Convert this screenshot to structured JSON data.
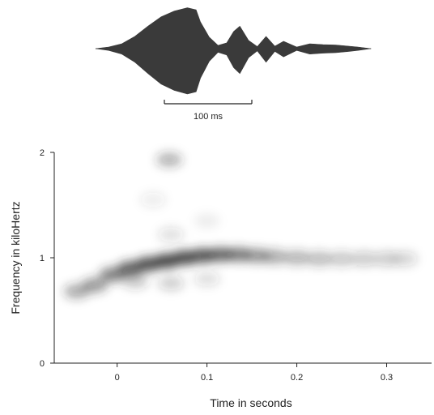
{
  "chart_data": [
    {
      "type": "line",
      "subtype": "waveform",
      "scale_bar": {
        "label": "100 ms",
        "duration_s": 0.1
      },
      "envelope": {
        "t": [
          0.0,
          0.015,
          0.03,
          0.045,
          0.06,
          0.075,
          0.09,
          0.105,
          0.115,
          0.12,
          0.13,
          0.14,
          0.15,
          0.158,
          0.165,
          0.175,
          0.185,
          0.195,
          0.205,
          0.215,
          0.23,
          0.245,
          0.26,
          0.275,
          0.29,
          0.3,
          0.315
        ],
        "amp": [
          0.0,
          0.04,
          0.12,
          0.3,
          0.55,
          0.78,
          0.92,
          1.0,
          0.95,
          0.65,
          0.28,
          0.08,
          0.14,
          0.42,
          0.55,
          0.2,
          0.05,
          0.3,
          0.06,
          0.18,
          0.04,
          0.12,
          0.1,
          0.09,
          0.06,
          0.04,
          0.0
        ]
      },
      "color": "#3a3a3a"
    },
    {
      "type": "heatmap",
      "subtype": "spectrogram",
      "xlabel": "Time in seconds",
      "ylabel": "Frequency in kiloHertz",
      "xlim": [
        -0.07,
        0.35
      ],
      "ylim": [
        0,
        2
      ],
      "xticks": [
        0,
        0.1,
        0.2,
        0.3
      ],
      "xtick_labels": [
        "0",
        "0.1",
        "0.2",
        "0.3"
      ],
      "yticks": [
        0,
        1,
        2
      ],
      "ytick_labels": [
        "0",
        "1",
        "2"
      ],
      "color": "#2a2a2a",
      "blobs": [
        {
          "t": -0.045,
          "f": 0.68,
          "intensity": 0.45
        },
        {
          "t": -0.025,
          "f": 0.74,
          "intensity": 0.55
        },
        {
          "t": -0.005,
          "f": 0.84,
          "intensity": 0.7
        },
        {
          "t": 0.015,
          "f": 0.9,
          "intensity": 0.85
        },
        {
          "t": 0.035,
          "f": 0.94,
          "intensity": 0.95
        },
        {
          "t": 0.055,
          "f": 0.97,
          "intensity": 1.0
        },
        {
          "t": 0.075,
          "f": 1.0,
          "intensity": 0.98
        },
        {
          "t": 0.095,
          "f": 1.02,
          "intensity": 0.9
        },
        {
          "t": 0.115,
          "f": 1.03,
          "intensity": 0.8
        },
        {
          "t": 0.135,
          "f": 1.03,
          "intensity": 0.7
        },
        {
          "t": 0.155,
          "f": 1.02,
          "intensity": 0.55
        },
        {
          "t": 0.175,
          "f": 1.01,
          "intensity": 0.45
        },
        {
          "t": 0.2,
          "f": 1.0,
          "intensity": 0.4
        },
        {
          "t": 0.225,
          "f": 0.99,
          "intensity": 0.36
        },
        {
          "t": 0.25,
          "f": 0.99,
          "intensity": 0.3
        },
        {
          "t": 0.275,
          "f": 0.99,
          "intensity": 0.27
        },
        {
          "t": 0.3,
          "f": 0.99,
          "intensity": 0.26
        },
        {
          "t": 0.32,
          "f": 0.99,
          "intensity": 0.22
        },
        {
          "t": 0.02,
          "f": 0.78,
          "intensity": 0.3
        },
        {
          "t": 0.06,
          "f": 0.76,
          "intensity": 0.25
        },
        {
          "t": 0.1,
          "f": 0.8,
          "intensity": 0.18
        },
        {
          "t": 0.06,
          "f": 1.22,
          "intensity": 0.16
        },
        {
          "t": 0.04,
          "f": 1.55,
          "intensity": 0.1
        },
        {
          "t": 0.058,
          "f": 1.93,
          "intensity": 0.4
        },
        {
          "t": 0.1,
          "f": 1.35,
          "intensity": 0.08
        }
      ]
    }
  ]
}
